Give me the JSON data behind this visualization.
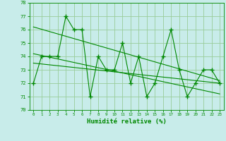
{
  "x": [
    0,
    1,
    2,
    3,
    4,
    5,
    6,
    7,
    8,
    9,
    10,
    11,
    12,
    13,
    14,
    15,
    16,
    17,
    18,
    19,
    20,
    21,
    22,
    23
  ],
  "y_main": [
    72,
    74,
    74,
    74,
    77,
    76,
    76,
    71,
    74,
    73,
    73,
    75,
    72,
    74,
    71,
    72,
    74,
    76,
    73,
    71,
    72,
    73,
    73,
    72
  ],
  "trend1_x": [
    0,
    23
  ],
  "trend1_y": [
    76.2,
    72.2
  ],
  "trend2_x": [
    0,
    23
  ],
  "trend2_y": [
    74.2,
    71.2
  ],
  "trend3_x": [
    0,
    23
  ],
  "trend3_y": [
    73.5,
    72.0
  ],
  "line_color": "#008800",
  "bg_color": "#c8ecea",
  "grid_color": "#99cc99",
  "xlabel": "Humidité relative (%)",
  "ylim": [
    70,
    78
  ],
  "xlim_min": -0.5,
  "xlim_max": 23.5,
  "yticks": [
    70,
    71,
    72,
    73,
    74,
    75,
    76,
    77,
    78
  ],
  "xticks": [
    0,
    1,
    2,
    3,
    4,
    5,
    6,
    7,
    8,
    9,
    10,
    11,
    12,
    13,
    14,
    15,
    16,
    17,
    18,
    19,
    20,
    21,
    22,
    23
  ]
}
